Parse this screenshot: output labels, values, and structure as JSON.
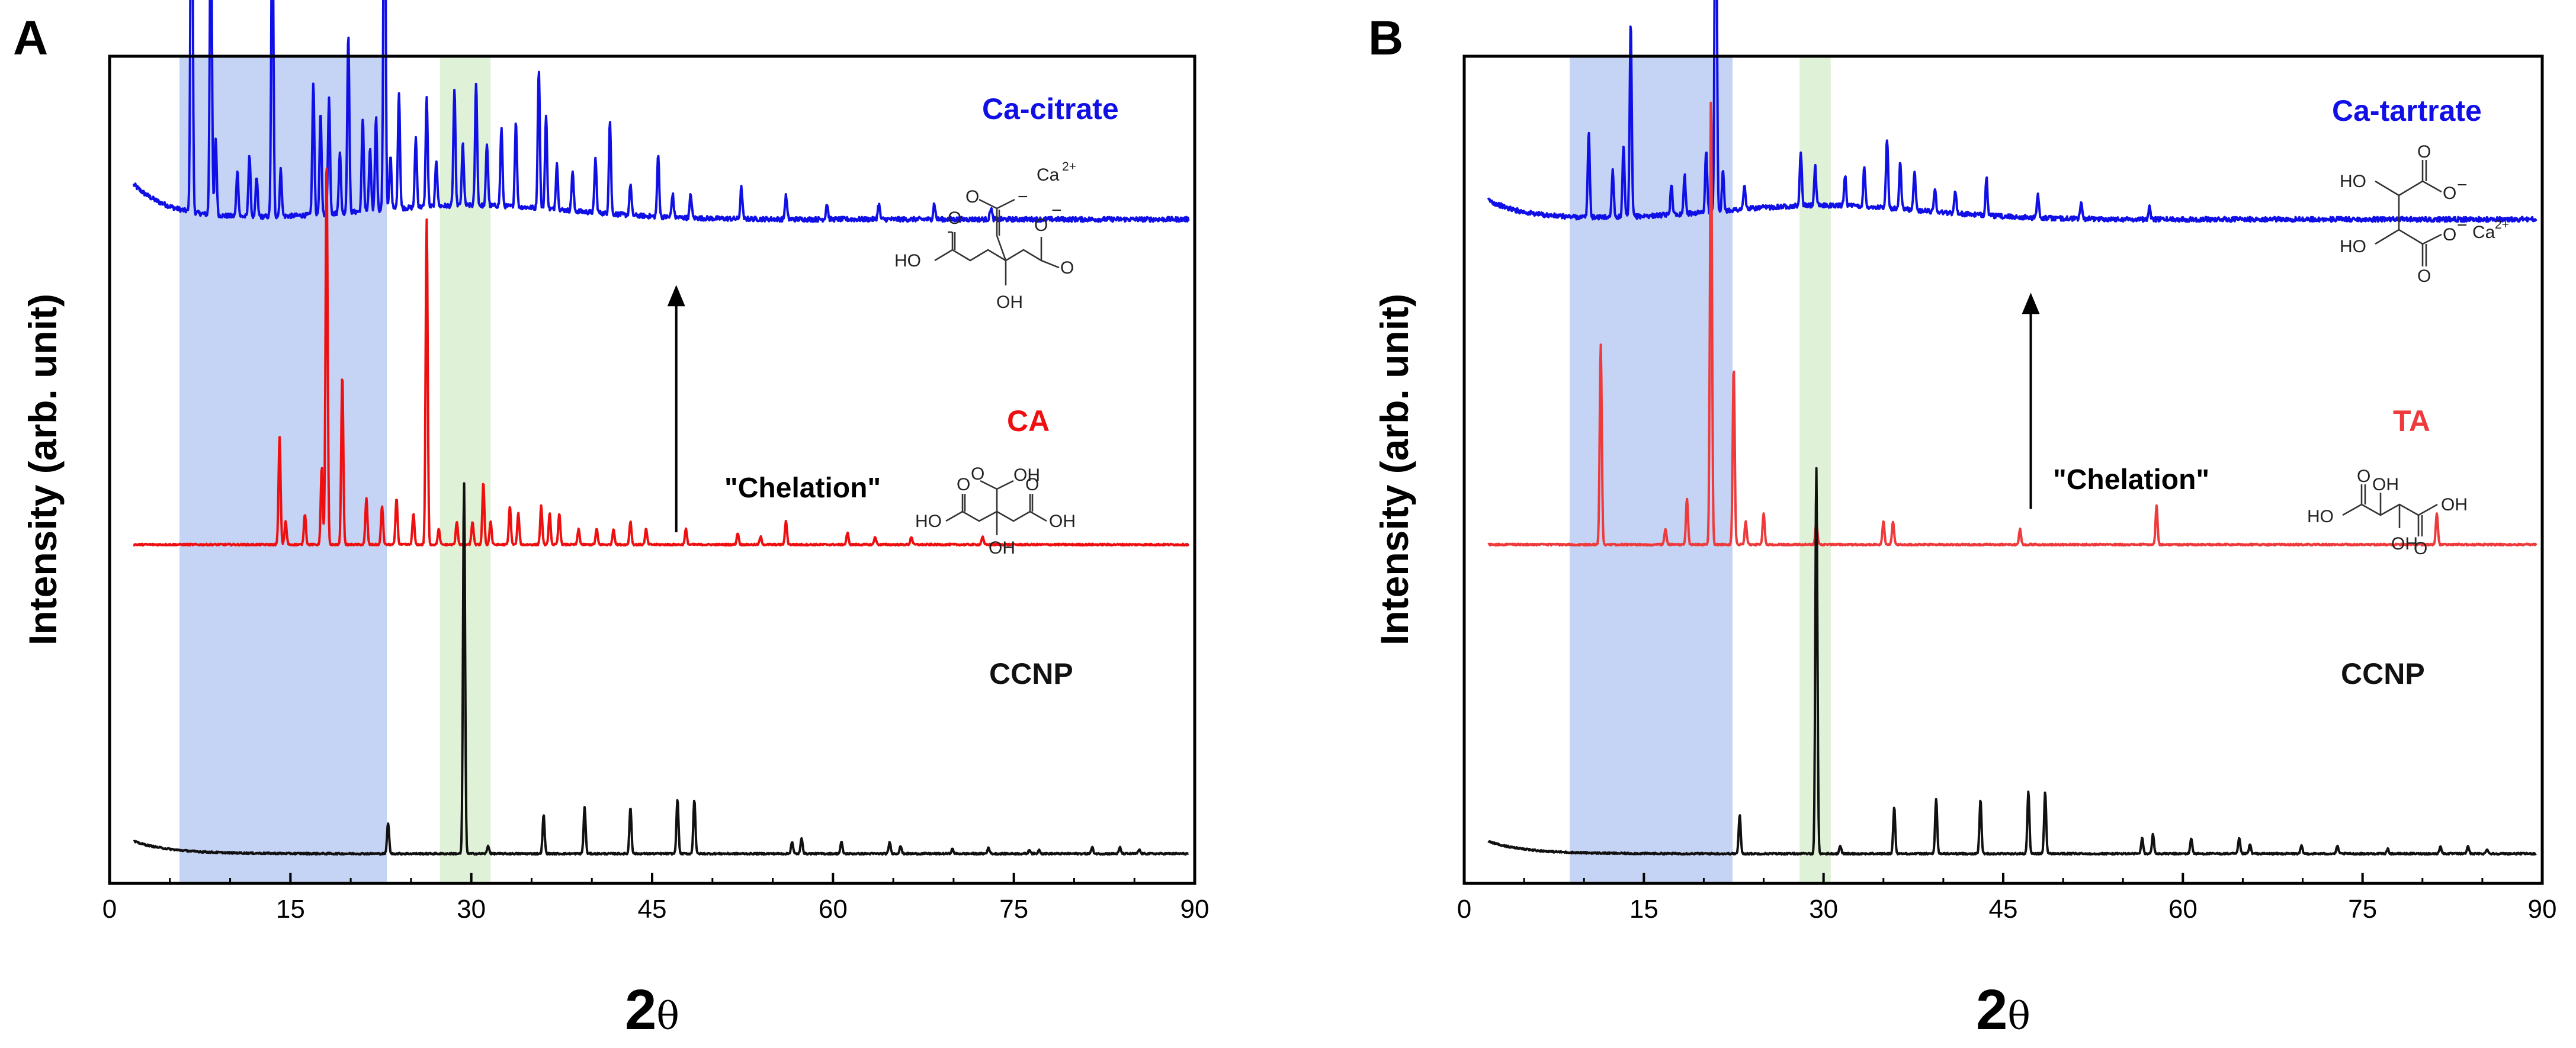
{
  "chart_data": [
    {
      "type": "line",
      "panel": "A",
      "xlabel": "2θ",
      "ylabel": "Intensity (arb. unit)",
      "xlim": [
        0,
        90
      ],
      "xticks": [
        0,
        15,
        30,
        45,
        60,
        75,
        90
      ],
      "y_ticks_shown": false,
      "highlight_bands": [
        {
          "x0": 5.8,
          "x1": 23.0,
          "color": "#c5d3f4"
        },
        {
          "x0": 27.4,
          "x1": 31.6,
          "color": "#dff2d7"
        }
      ],
      "series": [
        {
          "name": "Ca-citrate",
          "color": "#1010e6",
          "offset": 0.8,
          "baseline": 0.025,
          "baseline_start": 0.07,
          "peaks": [
            [
              6.8,
              0.62
            ],
            [
              8.4,
              0.44
            ],
            [
              8.8,
              0.1
            ],
            [
              10.6,
              0.06
            ],
            [
              11.6,
              0.08
            ],
            [
              12.2,
              0.05
            ],
            [
              13.5,
              0.44
            ],
            [
              14.2,
              0.06
            ],
            [
              16.9,
              0.17
            ],
            [
              17.5,
              0.13
            ],
            [
              18.2,
              0.15
            ],
            [
              19.1,
              0.08
            ],
            [
              19.8,
              0.23
            ],
            [
              21.0,
              0.12
            ],
            [
              21.6,
              0.08
            ],
            [
              22.1,
              0.12
            ],
            [
              22.8,
              0.58
            ],
            [
              23.3,
              0.07
            ],
            [
              24.0,
              0.15
            ],
            [
              25.4,
              0.09
            ],
            [
              26.3,
              0.14
            ],
            [
              27.1,
              0.06
            ],
            [
              28.6,
              0.15
            ],
            [
              29.3,
              0.08
            ],
            [
              30.4,
              0.16
            ],
            [
              31.3,
              0.08
            ],
            [
              32.5,
              0.1
            ],
            [
              33.7,
              0.11
            ],
            [
              35.6,
              0.18
            ],
            [
              36.2,
              0.12
            ],
            [
              37.1,
              0.06
            ],
            [
              38.4,
              0.05
            ],
            [
              40.3,
              0.07
            ],
            [
              41.5,
              0.12
            ],
            [
              43.2,
              0.04
            ],
            [
              45.5,
              0.08
            ],
            [
              46.7,
              0.03
            ],
            [
              48.2,
              0.03
            ],
            [
              52.4,
              0.04
            ],
            [
              56.1,
              0.03
            ],
            [
              59.5,
              0.02
            ],
            [
              63.8,
              0.02
            ],
            [
              68.4,
              0.02
            ],
            [
              73.1,
              0.015
            ]
          ]
        },
        {
          "name": "CA",
          "color": "#ee1010",
          "offset": 0.4,
          "baseline": 0.004,
          "baseline_start": 0.004,
          "peaks": [
            [
              14.1,
              0.14
            ],
            [
              14.6,
              0.03
            ],
            [
              16.2,
              0.04
            ],
            [
              17.6,
              0.1
            ],
            [
              18.0,
              0.5
            ],
            [
              19.3,
              0.22
            ],
            [
              21.3,
              0.06
            ],
            [
              22.6,
              0.05
            ],
            [
              23.8,
              0.06
            ],
            [
              25.2,
              0.04
            ],
            [
              26.3,
              0.42
            ],
            [
              27.3,
              0.02
            ],
            [
              28.8,
              0.03
            ],
            [
              30.1,
              0.03
            ],
            [
              31.0,
              0.08
            ],
            [
              31.6,
              0.03
            ],
            [
              33.2,
              0.05
            ],
            [
              33.9,
              0.04
            ],
            [
              35.8,
              0.05
            ],
            [
              36.5,
              0.04
            ],
            [
              37.3,
              0.04
            ],
            [
              38.9,
              0.02
            ],
            [
              40.4,
              0.02
            ],
            [
              41.8,
              0.02
            ],
            [
              43.2,
              0.03
            ],
            [
              44.5,
              0.02
            ],
            [
              47.8,
              0.02
            ],
            [
              52.1,
              0.015
            ],
            [
              54.0,
              0.01
            ],
            [
              56.1,
              0.03
            ],
            [
              61.2,
              0.015
            ],
            [
              63.5,
              0.01
            ],
            [
              66.5,
              0.01
            ],
            [
              72.4,
              0.01
            ]
          ]
        },
        {
          "name": "CCNP",
          "color": "#111111",
          "offset": 0.0,
          "baseline": 0.004,
          "baseline_start": 0.02,
          "peaks": [
            [
              23.1,
              0.04
            ],
            [
              29.4,
              0.48
            ],
            [
              31.4,
              0.01
            ],
            [
              36.0,
              0.05
            ],
            [
              39.4,
              0.06
            ],
            [
              43.2,
              0.06
            ],
            [
              47.1,
              0.07
            ],
            [
              48.5,
              0.07
            ],
            [
              56.6,
              0.015
            ],
            [
              57.4,
              0.02
            ],
            [
              60.7,
              0.015
            ],
            [
              64.7,
              0.015
            ],
            [
              65.6,
              0.01
            ],
            [
              69.9,
              0.006
            ],
            [
              72.9,
              0.008
            ],
            [
              76.3,
              0.005
            ],
            [
              77.1,
              0.005
            ],
            [
              81.5,
              0.008
            ],
            [
              83.8,
              0.008
            ],
            [
              85.4,
              0.005
            ]
          ]
        }
      ],
      "annotations": {
        "chelation": "\"Chelation\"",
        "arrow_from": 0.42,
        "arrow_to": 0.74,
        "arrow_x": 47.0
      },
      "molecules": [
        {
          "name": "Ca-citrate structure",
          "type": "citrate",
          "labels": {
            "hoL": "HO",
            "oL": "O",
            "oUp": "O",
            "oMinus1": "−",
            "ca": "Ca",
            "caSup": "2+",
            "oR": "O",
            "oMinus2": "−",
            "oR2": "O",
            "oh": "OH"
          }
        },
        {
          "name": "CA structure",
          "type": "citric",
          "labels": {
            "hoL": "HO",
            "oL": "O",
            "oh1": "OH",
            "oUp": "O",
            "oR": "O",
            "hoR": "OH",
            "oh": "OH"
          }
        }
      ]
    },
    {
      "type": "line",
      "panel": "B",
      "xlabel": "2θ",
      "ylabel": "Intensity (arb. unit)",
      "xlim": [
        0,
        90
      ],
      "xticks": [
        0,
        15,
        30,
        45,
        60,
        75,
        90
      ],
      "y_ticks_shown": false,
      "highlight_bands": [
        {
          "x0": 8.8,
          "x1": 22.4,
          "color": "#c5d3f4"
        },
        {
          "x0": 28.0,
          "x1": 30.6,
          "color": "#dff2d7"
        }
      ],
      "series": [
        {
          "name": "Ca-tartrate",
          "color": "#1010e6",
          "offset": 0.8,
          "baseline": 0.025,
          "baseline_start": 0.05,
          "peaks": [
            [
              10.4,
              0.11
            ],
            [
              12.4,
              0.06
            ],
            [
              13.3,
              0.09
            ],
            [
              13.9,
              0.25
            ],
            [
              17.3,
              0.04
            ],
            [
              18.4,
              0.05
            ],
            [
              20.2,
              0.08
            ],
            [
              21.0,
              0.58
            ],
            [
              21.6,
              0.05
            ],
            [
              23.4,
              0.03
            ],
            [
              28.1,
              0.07
            ],
            [
              29.3,
              0.05
            ],
            [
              31.8,
              0.04
            ],
            [
              33.4,
              0.05
            ],
            [
              35.3,
              0.09
            ],
            [
              36.4,
              0.06
            ],
            [
              37.6,
              0.05
            ],
            [
              39.3,
              0.03
            ],
            [
              41.0,
              0.03
            ],
            [
              43.6,
              0.05
            ],
            [
              47.9,
              0.03
            ],
            [
              51.5,
              0.02
            ],
            [
              57.2,
              0.015
            ]
          ]
        },
        {
          "name": "TA",
          "color": "#ee3a3a",
          "offset": 0.4,
          "baseline": 0.004,
          "baseline_start": 0.004,
          "peaks": [
            [
              11.4,
              0.26
            ],
            [
              16.8,
              0.02
            ],
            [
              18.6,
              0.06
            ],
            [
              20.6,
              0.58
            ],
            [
              22.5,
              0.23
            ],
            [
              23.5,
              0.03
            ],
            [
              25.0,
              0.04
            ],
            [
              29.4,
              0.03
            ],
            [
              35.0,
              0.03
            ],
            [
              35.8,
              0.03
            ],
            [
              46.4,
              0.02
            ],
            [
              57.8,
              0.05
            ],
            [
              81.2,
              0.04
            ]
          ]
        },
        {
          "name": "CCNP",
          "color": "#111111",
          "offset": 0.0,
          "baseline": 0.004,
          "baseline_start": 0.02,
          "peaks": [
            [
              23.0,
              0.05
            ],
            [
              29.4,
              0.5
            ],
            [
              31.4,
              0.01
            ],
            [
              35.9,
              0.06
            ],
            [
              39.4,
              0.07
            ],
            [
              43.1,
              0.07
            ],
            [
              47.1,
              0.08
            ],
            [
              48.5,
              0.08
            ],
            [
              56.6,
              0.02
            ],
            [
              57.5,
              0.025
            ],
            [
              60.7,
              0.02
            ],
            [
              64.7,
              0.02
            ],
            [
              65.6,
              0.012
            ],
            [
              69.9,
              0.01
            ],
            [
              72.9,
              0.01
            ],
            [
              77.1,
              0.006
            ],
            [
              81.5,
              0.01
            ],
            [
              83.8,
              0.01
            ],
            [
              85.4,
              0.006
            ]
          ]
        }
      ],
      "annotations": {
        "chelation": "\"Chelation\"",
        "arrow_from": 0.45,
        "arrow_to": 0.73,
        "arrow_x": 47.3
      },
      "molecules": [
        {
          "name": "Ca-tartrate structure",
          "type": "tartrate",
          "labels": {
            "ho1": "HO",
            "ho2": "HO",
            "oT": "O",
            "oTm": "O",
            "minus1": "−",
            "ca": "Ca",
            "caSup": "2+",
            "oB": "O",
            "oBm": "O",
            "minus2": "−"
          }
        },
        {
          "name": "TA structure",
          "type": "tartaric",
          "labels": {
            "hoL": "HO",
            "oL": "O",
            "oh1": "OH",
            "oh2": "OH",
            "oR": "O",
            "ohR": "OH"
          }
        }
      ]
    }
  ]
}
